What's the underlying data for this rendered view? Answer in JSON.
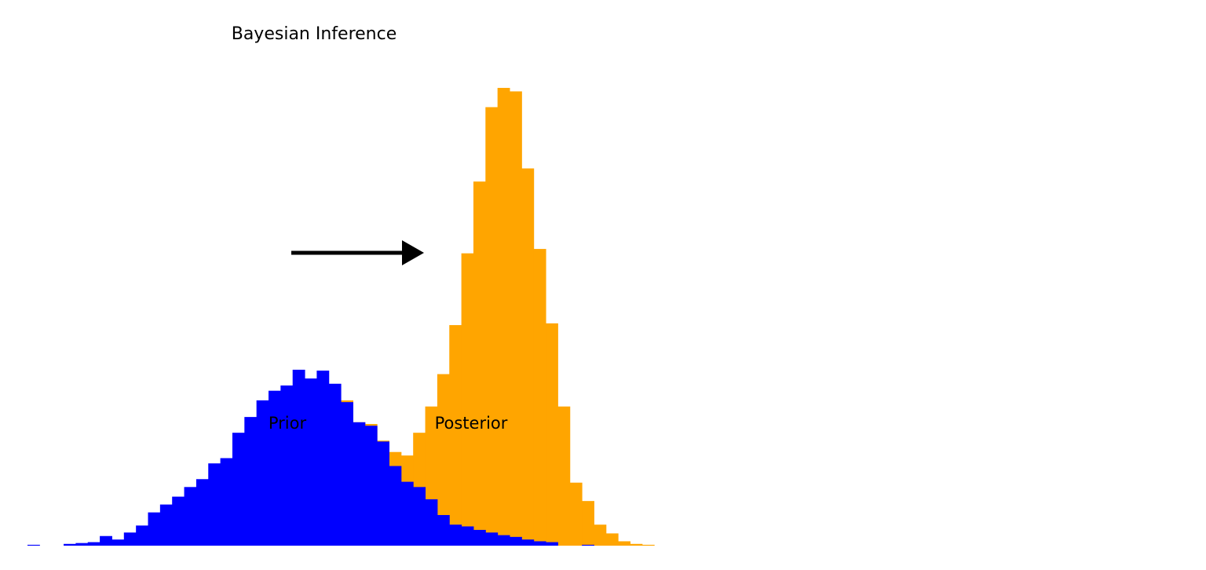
{
  "chart_data": {
    "type": "bar",
    "title": "Bayesian Inference",
    "xlabel": "",
    "ylabel": "",
    "axes_visible": false,
    "grid": false,
    "legend": "none",
    "ylim": [
      0,
      100
    ],
    "bin_index_range": [
      0,
      47
    ],
    "annotations": [
      {
        "text": "Prior",
        "series": "prior"
      },
      {
        "text": "Posterior",
        "series": "posterior"
      },
      {
        "type": "arrow",
        "from": "prior",
        "to": "posterior"
      }
    ],
    "series": [
      {
        "key": "prior",
        "color": "#0000ff",
        "start_bin": 0,
        "values": [
          0.5,
          0,
          0,
          1,
          1.5,
          2,
          5.5,
          3.5,
          7.5,
          11.5,
          19,
          23.5,
          28,
          33.5,
          38,
          47,
          50,
          64.5,
          73.5,
          83,
          88.5,
          91.5,
          100.5,
          95.5,
          100,
          92.5,
          82,
          70.5,
          68.5,
          59.5,
          45.5,
          36.5,
          33.5,
          26.5,
          17.5,
          12,
          11,
          9,
          7.5,
          6,
          5,
          3.5,
          2.5,
          2,
          0,
          0,
          0.5
        ]
      },
      {
        "key": "posterior",
        "color": "#ffa500",
        "start_bin": 26,
        "values": [
          83,
          70.5,
          69.5,
          60,
          53.5,
          51.5,
          64.5,
          79.5,
          98,
          126,
          167,
          208,
          250.5,
          261.5,
          259.5,
          215.5,
          169.5,
          127,
          79.5,
          36,
          25.5,
          12,
          7,
          2.5,
          1,
          0.5
        ]
      }
    ],
    "y_top_value": 270
  }
}
